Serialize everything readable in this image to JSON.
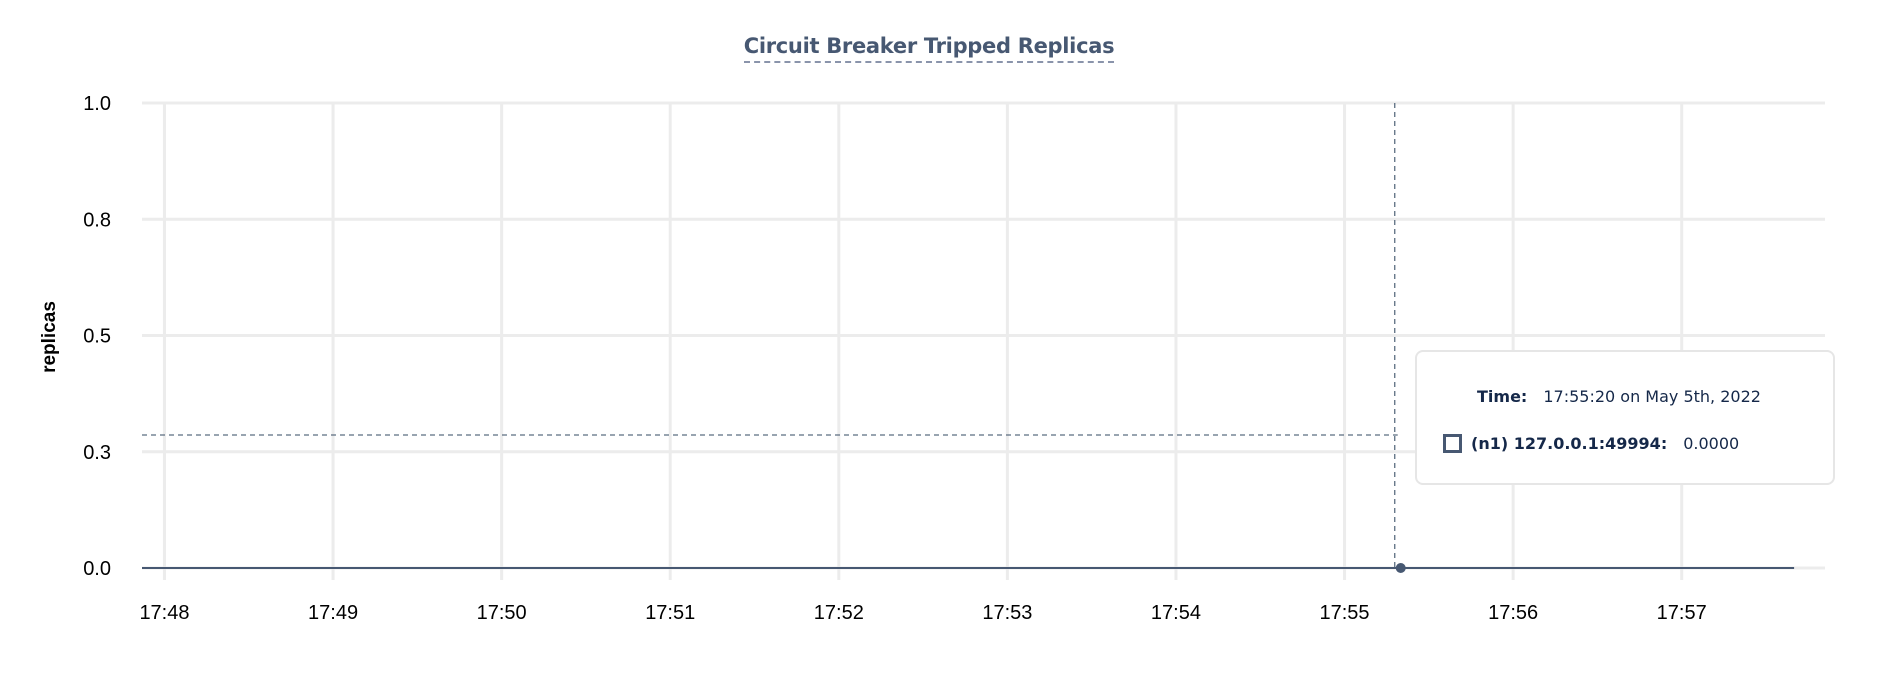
{
  "chart_data": {
    "type": "line",
    "title": "Circuit Breaker Tripped Replicas",
    "ylabel": "replicas",
    "xlabel": "",
    "ylim": [
      0,
      1
    ],
    "xlim": [
      "17:47:52",
      "17:57:51"
    ],
    "y_ticks": [
      {
        "value": 0,
        "label": "0.0"
      },
      {
        "value": 0.25,
        "label": "0.3"
      },
      {
        "value": 0.5,
        "label": "0.5"
      },
      {
        "value": 0.75,
        "label": "0.8"
      },
      {
        "value": 1,
        "label": "1.0"
      }
    ],
    "x_ticks": [
      "17:48",
      "17:49",
      "17:50",
      "17:51",
      "17:52",
      "17:53",
      "17:54",
      "17:55",
      "17:56",
      "17:57"
    ],
    "grid": true,
    "series": [
      {
        "name": "(n1) 127.0.0.1:49994",
        "color": "#475872",
        "points": [
          [
            "17:47:52",
            0
          ],
          [
            "17:55:20",
            0
          ],
          [
            "17:57:40",
            0
          ]
        ]
      }
    ],
    "hover": {
      "x": "17:55:20",
      "y": 0
    }
  },
  "tooltip": {
    "time_label": "Time:",
    "time_value": "17:55:20 on May 5th, 2022",
    "series_label": "(n1) 127.0.0.1:49994:",
    "series_value": "0.0000"
  },
  "colors": {
    "series": "#475872",
    "grid": "#ececec",
    "title": "#475872",
    "tooltip_text": "#152849"
  }
}
